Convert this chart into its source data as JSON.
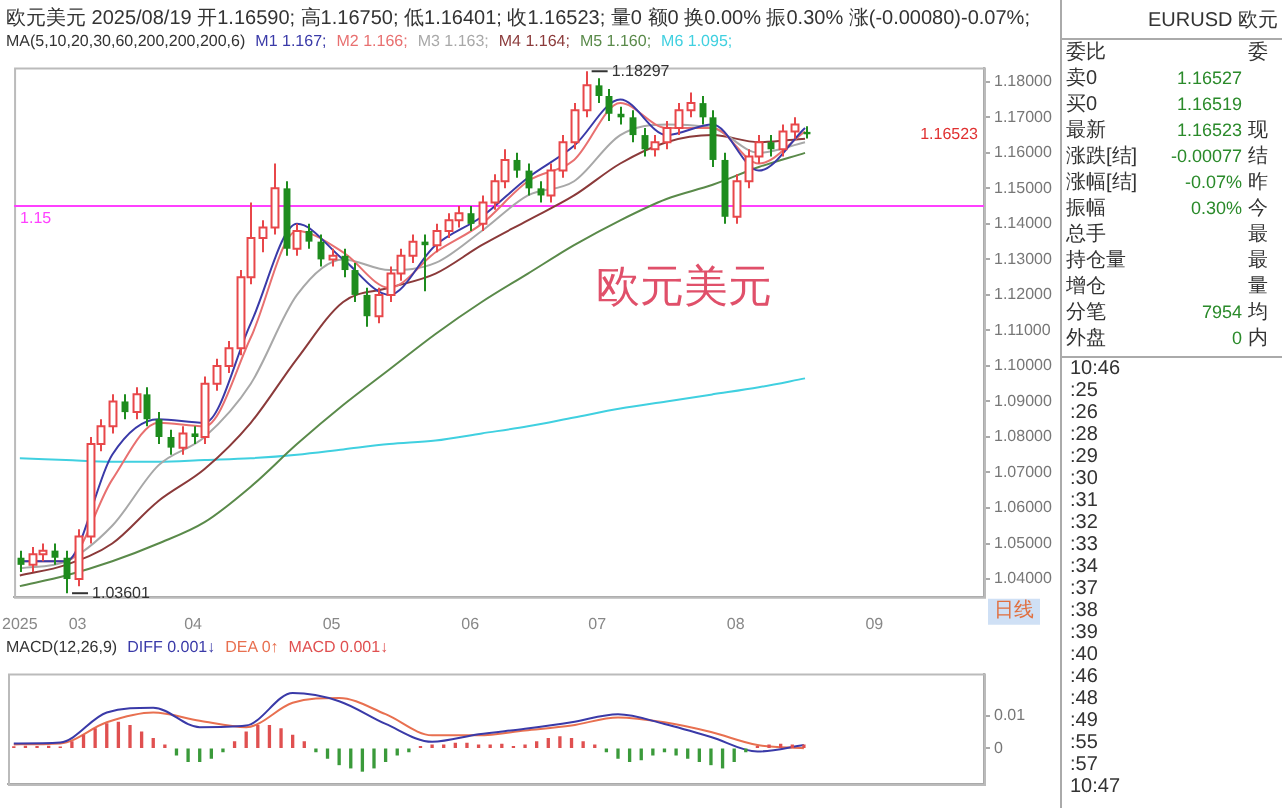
{
  "chart_data": [
    {
      "type": "candlestick",
      "title": "欧元美元 2025/08/19 开1.16590; 高1.16750; 低1.16401; 收1.16523; 量0 额0 换0.00% 振0.30% 涨(-0.00080)-0.07%;",
      "subtitle": "MA(5,10,20,30,60,200,200,200,6)",
      "legend": "top",
      "categories": [
        "2025",
        null,
        null,
        null,
        null,
        "03",
        null,
        null,
        null,
        null,
        null,
        null,
        null,
        null,
        null,
        "04",
        null,
        null,
        null,
        null,
        null,
        null,
        null,
        null,
        null,
        null,
        null,
        "05",
        null,
        null,
        null,
        null,
        null,
        null,
        null,
        null,
        null,
        null,
        null,
        "06",
        null,
        null,
        null,
        null,
        null,
        null,
        null,
        null,
        null,
        null,
        "07",
        null,
        null,
        null,
        null,
        null,
        null,
        null,
        null,
        null,
        null,
        null,
        "08",
        null,
        null,
        null,
        null,
        null,
        null,
        null,
        null,
        null,
        null,
        null,
        "09",
        null,
        null,
        null,
        null,
        null,
        null,
        null,
        null,
        null
      ],
      "ohlc": [
        [
          1.046,
          1.048,
          1.042,
          1.044
        ],
        [
          1.044,
          1.049,
          1.042,
          1.047
        ],
        [
          1.047,
          1.05,
          1.045,
          1.048
        ],
        [
          1.048,
          1.05,
          1.044,
          1.046
        ],
        [
          1.046,
          1.048,
          1.03601,
          1.04
        ],
        [
          1.04,
          1.054,
          1.038,
          1.052
        ],
        [
          1.052,
          1.08,
          1.05,
          1.078
        ],
        [
          1.078,
          1.085,
          1.076,
          1.083
        ],
        [
          1.083,
          1.092,
          1.081,
          1.09
        ],
        [
          1.09,
          1.092,
          1.085,
          1.087
        ],
        [
          1.087,
          1.094,
          1.085,
          1.092
        ],
        [
          1.092,
          1.094,
          1.083,
          1.085
        ],
        [
          1.085,
          1.087,
          1.078,
          1.08
        ],
        [
          1.08,
          1.082,
          1.075,
          1.077
        ],
        [
          1.077,
          1.083,
          1.075,
          1.081
        ],
        [
          1.081,
          1.083,
          1.078,
          1.08
        ],
        [
          1.08,
          1.097,
          1.078,
          1.095
        ],
        [
          1.095,
          1.102,
          1.093,
          1.1
        ],
        [
          1.1,
          1.107,
          1.098,
          1.105
        ],
        [
          1.105,
          1.127,
          1.103,
          1.125
        ],
        [
          1.125,
          1.146,
          1.123,
          1.136
        ],
        [
          1.136,
          1.141,
          1.132,
          1.139
        ],
        [
          1.139,
          1.157,
          1.137,
          1.15
        ],
        [
          1.15,
          1.152,
          1.131,
          1.133
        ],
        [
          1.133,
          1.14,
          1.131,
          1.138
        ],
        [
          1.138,
          1.14,
          1.133,
          1.135
        ],
        [
          1.135,
          1.137,
          1.128,
          1.13
        ],
        [
          1.13,
          1.133,
          1.128,
          1.131
        ],
        [
          1.131,
          1.133,
          1.125,
          1.127
        ],
        [
          1.127,
          1.129,
          1.118,
          1.12
        ],
        [
          1.12,
          1.122,
          1.111,
          1.114
        ],
        [
          1.114,
          1.122,
          1.112,
          1.12
        ],
        [
          1.12,
          1.128,
          1.118,
          1.126
        ],
        [
          1.126,
          1.133,
          1.124,
          1.131
        ],
        [
          1.131,
          1.137,
          1.129,
          1.135
        ],
        [
          1.135,
          1.137,
          1.121,
          1.134
        ],
        [
          1.134,
          1.14,
          1.132,
          1.138
        ],
        [
          1.138,
          1.143,
          1.136,
          1.141
        ],
        [
          1.141,
          1.145,
          1.139,
          1.143
        ],
        [
          1.143,
          1.145,
          1.138,
          1.14
        ],
        [
          1.14,
          1.148,
          1.138,
          1.146
        ],
        [
          1.146,
          1.154,
          1.144,
          1.152
        ],
        [
          1.152,
          1.161,
          1.15,
          1.158
        ],
        [
          1.158,
          1.16,
          1.153,
          1.155
        ],
        [
          1.155,
          1.157,
          1.148,
          1.15
        ],
        [
          1.15,
          1.152,
          1.146,
          1.148
        ],
        [
          1.148,
          1.157,
          1.146,
          1.155
        ],
        [
          1.155,
          1.165,
          1.153,
          1.163
        ],
        [
          1.163,
          1.174,
          1.161,
          1.172
        ],
        [
          1.172,
          1.18297,
          1.17,
          1.179
        ],
        [
          1.179,
          1.181,
          1.174,
          1.176
        ],
        [
          1.176,
          1.178,
          1.169,
          1.171
        ],
        [
          1.171,
          1.173,
          1.168,
          1.17
        ],
        [
          1.17,
          1.172,
          1.163,
          1.165
        ],
        [
          1.165,
          1.167,
          1.159,
          1.161
        ],
        [
          1.161,
          1.165,
          1.159,
          1.163
        ],
        [
          1.163,
          1.169,
          1.161,
          1.167
        ],
        [
          1.167,
          1.174,
          1.165,
          1.172
        ],
        [
          1.172,
          1.177,
          1.17,
          1.174
        ],
        [
          1.174,
          1.176,
          1.168,
          1.17
        ],
        [
          1.17,
          1.172,
          1.156,
          1.158
        ],
        [
          1.158,
          1.16,
          1.14,
          1.142
        ],
        [
          1.142,
          1.154,
          1.14,
          1.152
        ],
        [
          1.152,
          1.161,
          1.15,
          1.159
        ],
        [
          1.159,
          1.165,
          1.157,
          1.163
        ],
        [
          1.163,
          1.165,
          1.159,
          1.161
        ],
        [
          1.161,
          1.168,
          1.159,
          1.166
        ],
        [
          1.166,
          1.17,
          1.164,
          1.168
        ],
        [
          1.1659,
          1.1675,
          1.16401,
          1.16523
        ],
        null,
        null,
        null,
        null,
        null,
        null,
        null,
        null,
        null,
        null,
        null,
        null,
        null,
        null,
        null
      ],
      "series": [
        {
          "name": "M1 1.167;",
          "type": "line",
          "color": "#3a3aa8",
          "values": [
            1.045,
            null,
            null,
            null,
            1.045,
            null,
            null,
            null,
            1.075,
            null,
            null,
            null,
            1.085,
            null,
            null,
            null,
            1.084,
            null,
            null,
            null,
            1.112,
            null,
            null,
            null,
            1.14,
            null,
            null,
            null,
            1.13,
            null,
            null,
            null,
            1.12,
            null,
            null,
            null,
            1.134,
            null,
            null,
            null,
            1.142,
            null,
            null,
            null,
            1.153,
            null,
            null,
            null,
            1.162,
            null,
            null,
            null,
            1.175,
            null,
            null,
            null,
            1.165,
            null,
            null,
            null,
            1.168,
            null,
            null,
            null,
            1.155,
            null,
            null,
            null,
            1.167,
            null,
            null,
            null,
            null,
            null,
            null,
            null,
            null,
            null,
            null,
            null,
            null,
            null,
            null,
            null
          ]
        },
        {
          "name": "M2 1.166;",
          "type": "line",
          "color": "#e87070",
          "values": [
            1.045,
            null,
            null,
            null,
            1.045,
            null,
            null,
            null,
            1.068,
            null,
            null,
            null,
            1.084,
            null,
            null,
            null,
            1.083,
            null,
            null,
            null,
            1.108,
            null,
            null,
            null,
            1.138,
            null,
            null,
            null,
            1.132,
            null,
            null,
            null,
            1.122,
            null,
            null,
            null,
            1.132,
            null,
            null,
            null,
            1.14,
            null,
            null,
            null,
            1.152,
            null,
            null,
            null,
            1.158,
            null,
            null,
            null,
            1.174,
            null,
            null,
            null,
            1.167,
            null,
            null,
            null,
            1.167,
            null,
            null,
            null,
            1.157,
            null,
            null,
            null,
            1.166,
            null,
            null,
            null,
            null,
            null,
            null,
            null,
            null,
            null,
            null,
            null,
            null,
            null,
            null,
            null
          ]
        },
        {
          "name": "M3 1.163;",
          "type": "line",
          "color": "#a8a8a8",
          "values": [
            1.043,
            null,
            null,
            null,
            1.045,
            null,
            null,
            null,
            1.055,
            null,
            null,
            null,
            1.072,
            null,
            null,
            null,
            1.08,
            null,
            null,
            null,
            1.095,
            null,
            null,
            null,
            1.12,
            null,
            null,
            null,
            1.13,
            null,
            null,
            null,
            1.127,
            null,
            null,
            null,
            1.129,
            null,
            null,
            null,
            1.138,
            null,
            null,
            null,
            1.148,
            null,
            null,
            null,
            1.152,
            null,
            null,
            null,
            1.165,
            null,
            null,
            null,
            1.168,
            null,
            null,
            null,
            1.167,
            null,
            null,
            null,
            1.16,
            null,
            null,
            null,
            1.163,
            null,
            null,
            null,
            null,
            null,
            null,
            null,
            null,
            null,
            null,
            null,
            null,
            null,
            null,
            null
          ]
        },
        {
          "name": "M4 1.164;",
          "type": "line",
          "color": "#8b3a3a",
          "values": [
            1.041,
            null,
            null,
            null,
            1.044,
            null,
            null,
            null,
            1.05,
            null,
            null,
            null,
            1.062,
            null,
            null,
            null,
            1.071,
            null,
            null,
            null,
            1.084,
            null,
            null,
            null,
            1.102,
            null,
            null,
            null,
            1.118,
            null,
            null,
            null,
            1.122,
            null,
            null,
            null,
            1.126,
            null,
            null,
            null,
            1.134,
            null,
            null,
            null,
            1.141,
            null,
            null,
            null,
            1.148,
            null,
            null,
            null,
            1.157,
            null,
            null,
            null,
            1.163,
            null,
            null,
            null,
            1.165,
            null,
            null,
            null,
            1.163,
            null,
            null,
            null,
            1.164,
            null,
            null,
            null,
            null,
            null,
            null,
            null,
            null,
            null,
            null,
            null,
            null,
            null,
            null,
            null
          ]
        },
        {
          "name": "M5 1.160;",
          "type": "line",
          "color": "#5a8a4a",
          "values": [
            1.038,
            null,
            null,
            null,
            1.041,
            null,
            null,
            null,
            1.045,
            null,
            null,
            null,
            1.05,
            null,
            null,
            null,
            1.056,
            null,
            null,
            null,
            1.066,
            null,
            null,
            null,
            1.078,
            null,
            null,
            null,
            1.089,
            null,
            null,
            null,
            1.099,
            null,
            null,
            null,
            1.109,
            null,
            null,
            null,
            1.118,
            null,
            null,
            null,
            1.126,
            null,
            null,
            null,
            1.134,
            null,
            null,
            null,
            1.141,
            null,
            null,
            null,
            1.147,
            null,
            null,
            null,
            1.151,
            null,
            null,
            null,
            1.156,
            null,
            null,
            null,
            1.16,
            null,
            null,
            null,
            null,
            null,
            null,
            null,
            null,
            null,
            null,
            null,
            null,
            null,
            null,
            null
          ]
        },
        {
          "name": "M6 1.095;",
          "type": "line",
          "color": "#40d0e0",
          "values": [
            1.074,
            null,
            null,
            null,
            1.0735,
            null,
            null,
            null,
            1.073,
            null,
            null,
            null,
            1.073,
            null,
            null,
            null,
            1.0735,
            null,
            null,
            null,
            1.074,
            null,
            null,
            null,
            1.075,
            null,
            null,
            null,
            1.0765,
            null,
            null,
            null,
            1.078,
            null,
            null,
            null,
            1.079,
            null,
            null,
            null,
            1.081,
            null,
            null,
            null,
            1.083,
            null,
            null,
            null,
            1.0855,
            null,
            null,
            null,
            1.088,
            null,
            null,
            null,
            1.09,
            null,
            null,
            null,
            1.092,
            null,
            null,
            null,
            1.094,
            null,
            null,
            null,
            1.0965,
            null,
            null,
            null,
            null,
            null,
            null,
            null,
            null,
            null,
            null,
            null,
            null,
            null,
            null,
            null
          ]
        }
      ],
      "ylim": [
        1.035,
        1.184
      ],
      "yticks": [
        {
          "value": 1.04,
          "label": "1.04000"
        },
        {
          "value": 1.05,
          "label": "1.05000"
        },
        {
          "value": 1.06,
          "label": "1.06000"
        },
        {
          "value": 1.07,
          "label": "1.07000"
        },
        {
          "value": 1.08,
          "label": "1.08000"
        },
        {
          "value": 1.09,
          "label": "1.09000"
        },
        {
          "value": 1.1,
          "label": "1.10000"
        },
        {
          "value": 1.11,
          "label": "1.11000"
        },
        {
          "value": 1.12,
          "label": "1.12000"
        },
        {
          "value": 1.13,
          "label": "1.13000"
        },
        {
          "value": 1.14,
          "label": "1.14000"
        },
        {
          "value": 1.15,
          "label": "1.15000"
        },
        {
          "value": 1.16,
          "label": "1.16000"
        },
        {
          "value": 1.17,
          "label": "1.17000"
        },
        {
          "value": 1.18,
          "label": "1.18000"
        }
      ],
      "ref_lines": [
        {
          "axis": "y",
          "value": 1.145,
          "label": "1.15",
          "color": "#ff40ff"
        }
      ],
      "annotations": [
        "1.18297",
        "1.03601",
        "1.16523",
        "欧元美元",
        "日线"
      ]
    },
    {
      "type": "bar",
      "subtitle": "MACD(12,26,9)",
      "legend": "top",
      "tick_labels": "y",
      "categories": [
        "2025",
        null,
        null,
        null,
        null,
        "03",
        null,
        null,
        null,
        null,
        null,
        null,
        null,
        null,
        null,
        "04",
        null,
        null,
        null,
        null,
        null,
        null,
        null,
        null,
        null,
        null,
        null,
        "05",
        null,
        null,
        null,
        null,
        null,
        null,
        null,
        null,
        null,
        null,
        null,
        "06",
        null,
        null,
        null,
        null,
        null,
        null,
        null,
        null,
        null,
        null,
        "07",
        null,
        null,
        null,
        null,
        null,
        null,
        null,
        null,
        null,
        null,
        null,
        "08",
        null,
        null,
        null,
        null,
        null,
        null,
        null,
        null,
        null,
        null,
        null,
        "09",
        null,
        null,
        null,
        null,
        null,
        null,
        null,
        null,
        null
      ],
      "series": [
        {
          "name": "DIFF 0.001↓",
          "type": "line",
          "color": "#3a3aa8",
          "values": [
            0.0015,
            null,
            null,
            null,
            0.0018,
            null,
            null,
            null,
            0.011,
            null,
            null,
            null,
            0.0125,
            null,
            null,
            null,
            0.0065,
            null,
            null,
            null,
            0.007,
            null,
            null,
            null,
            0.017,
            null,
            null,
            null,
            0.0145,
            null,
            null,
            null,
            0.0075,
            null,
            null,
            null,
            0.002,
            null,
            null,
            null,
            0.0043,
            null,
            null,
            null,
            0.006,
            null,
            null,
            null,
            0.008,
            null,
            null,
            null,
            0.0105,
            null,
            null,
            null,
            0.0075,
            null,
            null,
            null,
            0.0035,
            null,
            null,
            null,
            -0.001,
            null,
            null,
            null,
            0.001,
            null,
            null,
            null,
            null,
            null,
            null,
            null,
            null,
            null,
            null,
            null,
            null,
            null,
            null,
            null
          ]
        },
        {
          "name": "DEA 0↑",
          "type": "line",
          "color": "#e87050",
          "values": [
            0.0012,
            null,
            null,
            null,
            0.0015,
            null,
            null,
            null,
            0.008,
            null,
            null,
            null,
            0.011,
            null,
            null,
            null,
            0.0085,
            null,
            null,
            null,
            0.0065,
            null,
            null,
            null,
            0.014,
            null,
            null,
            null,
            0.0155,
            null,
            null,
            null,
            0.0105,
            null,
            null,
            null,
            0.004,
            null,
            null,
            null,
            0.004,
            null,
            null,
            null,
            0.0055,
            null,
            null,
            null,
            0.007,
            null,
            null,
            null,
            0.0095,
            null,
            null,
            null,
            0.008,
            null,
            null,
            null,
            0.005,
            null,
            null,
            null,
            0.001,
            null,
            null,
            null,
            0,
            null,
            null,
            null,
            null,
            null,
            null,
            null,
            null,
            null,
            null,
            null,
            null,
            null,
            null,
            null
          ]
        },
        {
          "name": "MACD 0.001↓",
          "values": [
            0.0004,
            0.0006,
            0.0005,
            0.0006,
            0.0003,
            0.002,
            0.004,
            0.006,
            0.0075,
            0.008,
            0.007,
            0.005,
            0.003,
            0.001,
            -0.002,
            -0.004,
            -0.004,
            -0.003,
            -0.001,
            0.002,
            0.005,
            0.007,
            0.007,
            0.006,
            0.004,
            0.002,
            -0.001,
            -0.003,
            -0.005,
            -0.006,
            -0.007,
            -0.006,
            -0.004,
            -0.002,
            -0.001,
            0.0005,
            0.001,
            0.001,
            0.0015,
            0.0015,
            0.001,
            0.001,
            0.0012,
            0.0005,
            0.001,
            0.002,
            0.003,
            0.0035,
            0.003,
            0.002,
            0.001,
            -0.001,
            -0.003,
            -0.004,
            -0.0035,
            -0.002,
            -0.001,
            -0.002,
            -0.003,
            -0.004,
            -0.005,
            -0.006,
            -0.004,
            -0.001,
            0.0005,
            0.001,
            0.0012,
            0.001,
            0.001,
            null,
            null,
            null,
            null,
            null,
            null,
            null,
            null,
            null,
            null,
            null,
            null,
            null,
            null,
            null
          ],
          "colors": [
            "#e05050",
            "#e05050",
            "#e05050",
            "#e05050",
            "#e05050",
            "#e05050",
            "#e05050",
            "#e05050",
            "#e05050",
            "#e05050",
            "#e05050",
            "#e05050",
            "#e05050",
            "#e05050",
            "#3a9a3a",
            "#3a9a3a",
            "#3a9a3a",
            "#3a9a3a",
            "#3a9a3a",
            "#e05050",
            "#e05050",
            "#e05050",
            "#e05050",
            "#e05050",
            "#e05050",
            "#e05050",
            "#3a9a3a",
            "#3a9a3a",
            "#3a9a3a",
            "#3a9a3a",
            "#3a9a3a",
            "#3a9a3a",
            "#3a9a3a",
            "#3a9a3a",
            "#3a9a3a",
            "#e05050",
            "#e05050",
            "#e05050",
            "#e05050",
            "#e05050",
            "#e05050",
            "#e05050",
            "#e05050",
            "#e05050",
            "#e05050",
            "#e05050",
            "#e05050",
            "#e05050",
            "#e05050",
            "#e05050",
            "#e05050",
            "#3a9a3a",
            "#3a9a3a",
            "#3a9a3a",
            "#3a9a3a",
            "#3a9a3a",
            "#3a9a3a",
            "#3a9a3a",
            "#3a9a3a",
            "#3a9a3a",
            "#3a9a3a",
            "#3a9a3a",
            "#3a9a3a",
            "#3a9a3a",
            "#e05050",
            "#e05050",
            "#e05050",
            "#e05050",
            "#e05050",
            null,
            null,
            null,
            null,
            null,
            null,
            null,
            null,
            null,
            null,
            null,
            null,
            null,
            null,
            null
          ]
        }
      ],
      "ylim": [
        -0.011,
        0.023
      ],
      "yticks": [
        0,
        0.01
      ]
    },
    {
      "type": "other",
      "title": "EURUSD 欧元",
      "cell_labels": [
        [
          "委比",
          null,
          "委"
        ],
        [
          "卖0",
          "1.16527",
          null
        ],
        [
          "买0",
          "1.16519",
          null
        ],
        [
          "最新",
          "1.16523",
          "现"
        ],
        [
          "涨跌[结]",
          "-0.00077",
          "结"
        ],
        [
          "涨幅[结]",
          "-0.07%",
          "昨"
        ],
        [
          "振幅",
          "0.30%",
          "今"
        ],
        [
          "总手",
          null,
          "最"
        ],
        [
          "持仓量",
          null,
          "最"
        ],
        [
          "增仓",
          null,
          "量"
        ],
        [
          "分笔",
          "7954",
          "均"
        ],
        [
          "外盘",
          "0",
          "内"
        ]
      ],
      "annotations": [
        "10:46",
        ":25",
        ":26",
        ":28",
        ":29",
        ":30",
        ":31",
        ":32",
        ":33",
        ":34",
        ":37",
        ":38",
        ":39",
        ":40",
        ":46",
        ":48",
        ":49",
        ":55",
        ":57",
        "10:47"
      ]
    }
  ]
}
